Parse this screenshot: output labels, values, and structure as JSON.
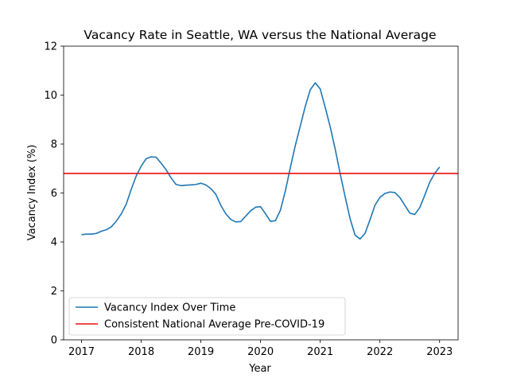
{
  "chart_data": {
    "type": "line",
    "title": "Vacancy Rate in Seattle, WA versus the National Average",
    "xlabel": "Year",
    "ylabel": "Vacancy Index (%)",
    "xlim": [
      2016.7,
      2023.31
    ],
    "ylim": [
      0,
      12
    ],
    "xticks": [
      2017,
      2018,
      2019,
      2020,
      2021,
      2022,
      2023
    ],
    "yticks": [
      0,
      2,
      4,
      6,
      8,
      10,
      12
    ],
    "grid": false,
    "legend_position": "lower-left",
    "series": [
      {
        "name": "Vacancy Index Over Time",
        "color": "#1f77b4",
        "x": [
          2017.0,
          2017.083,
          2017.167,
          2017.25,
          2017.333,
          2017.417,
          2017.5,
          2017.583,
          2017.667,
          2017.75,
          2017.833,
          2017.917,
          2018.0,
          2018.083,
          2018.167,
          2018.25,
          2018.333,
          2018.417,
          2018.5,
          2018.583,
          2018.667,
          2018.75,
          2018.833,
          2018.917,
          2019.0,
          2019.083,
          2019.167,
          2019.25,
          2019.333,
          2019.417,
          2019.5,
          2019.583,
          2019.667,
          2019.75,
          2019.833,
          2019.917,
          2020.0,
          2020.083,
          2020.167,
          2020.25,
          2020.333,
          2020.417,
          2020.5,
          2020.583,
          2020.667,
          2020.75,
          2020.833,
          2020.917,
          2021.0,
          2021.083,
          2021.167,
          2021.25,
          2021.333,
          2021.417,
          2021.5,
          2021.583,
          2021.667,
          2021.75,
          2021.833,
          2021.917,
          2022.0,
          2022.083,
          2022.167,
          2022.25,
          2022.333,
          2022.417,
          2022.5,
          2022.583,
          2022.667,
          2022.75,
          2022.833,
          2022.917,
          2023.0
        ],
        "y": [
          4.3,
          4.32,
          4.32,
          4.35,
          4.44,
          4.5,
          4.62,
          4.85,
          5.15,
          5.55,
          6.15,
          6.7,
          7.1,
          7.4,
          7.48,
          7.46,
          7.22,
          6.95,
          6.62,
          6.35,
          6.3,
          6.32,
          6.33,
          6.35,
          6.4,
          6.33,
          6.18,
          5.95,
          5.5,
          5.15,
          4.92,
          4.82,
          4.83,
          5.05,
          5.27,
          5.42,
          5.44,
          5.15,
          4.84,
          4.87,
          5.3,
          6.1,
          7.05,
          7.95,
          8.75,
          9.55,
          10.22,
          10.5,
          10.25,
          9.5,
          8.7,
          7.8,
          6.8,
          5.85,
          4.95,
          4.28,
          4.12,
          4.35,
          4.9,
          5.5,
          5.82,
          5.98,
          6.04,
          6.02,
          5.82,
          5.5,
          5.18,
          5.12,
          5.4,
          5.9,
          6.43,
          6.8,
          7.06
        ]
      },
      {
        "name": "Consistent National Average Pre-COVID-19",
        "color": "#e8100e",
        "constant": 6.8
      }
    ]
  }
}
